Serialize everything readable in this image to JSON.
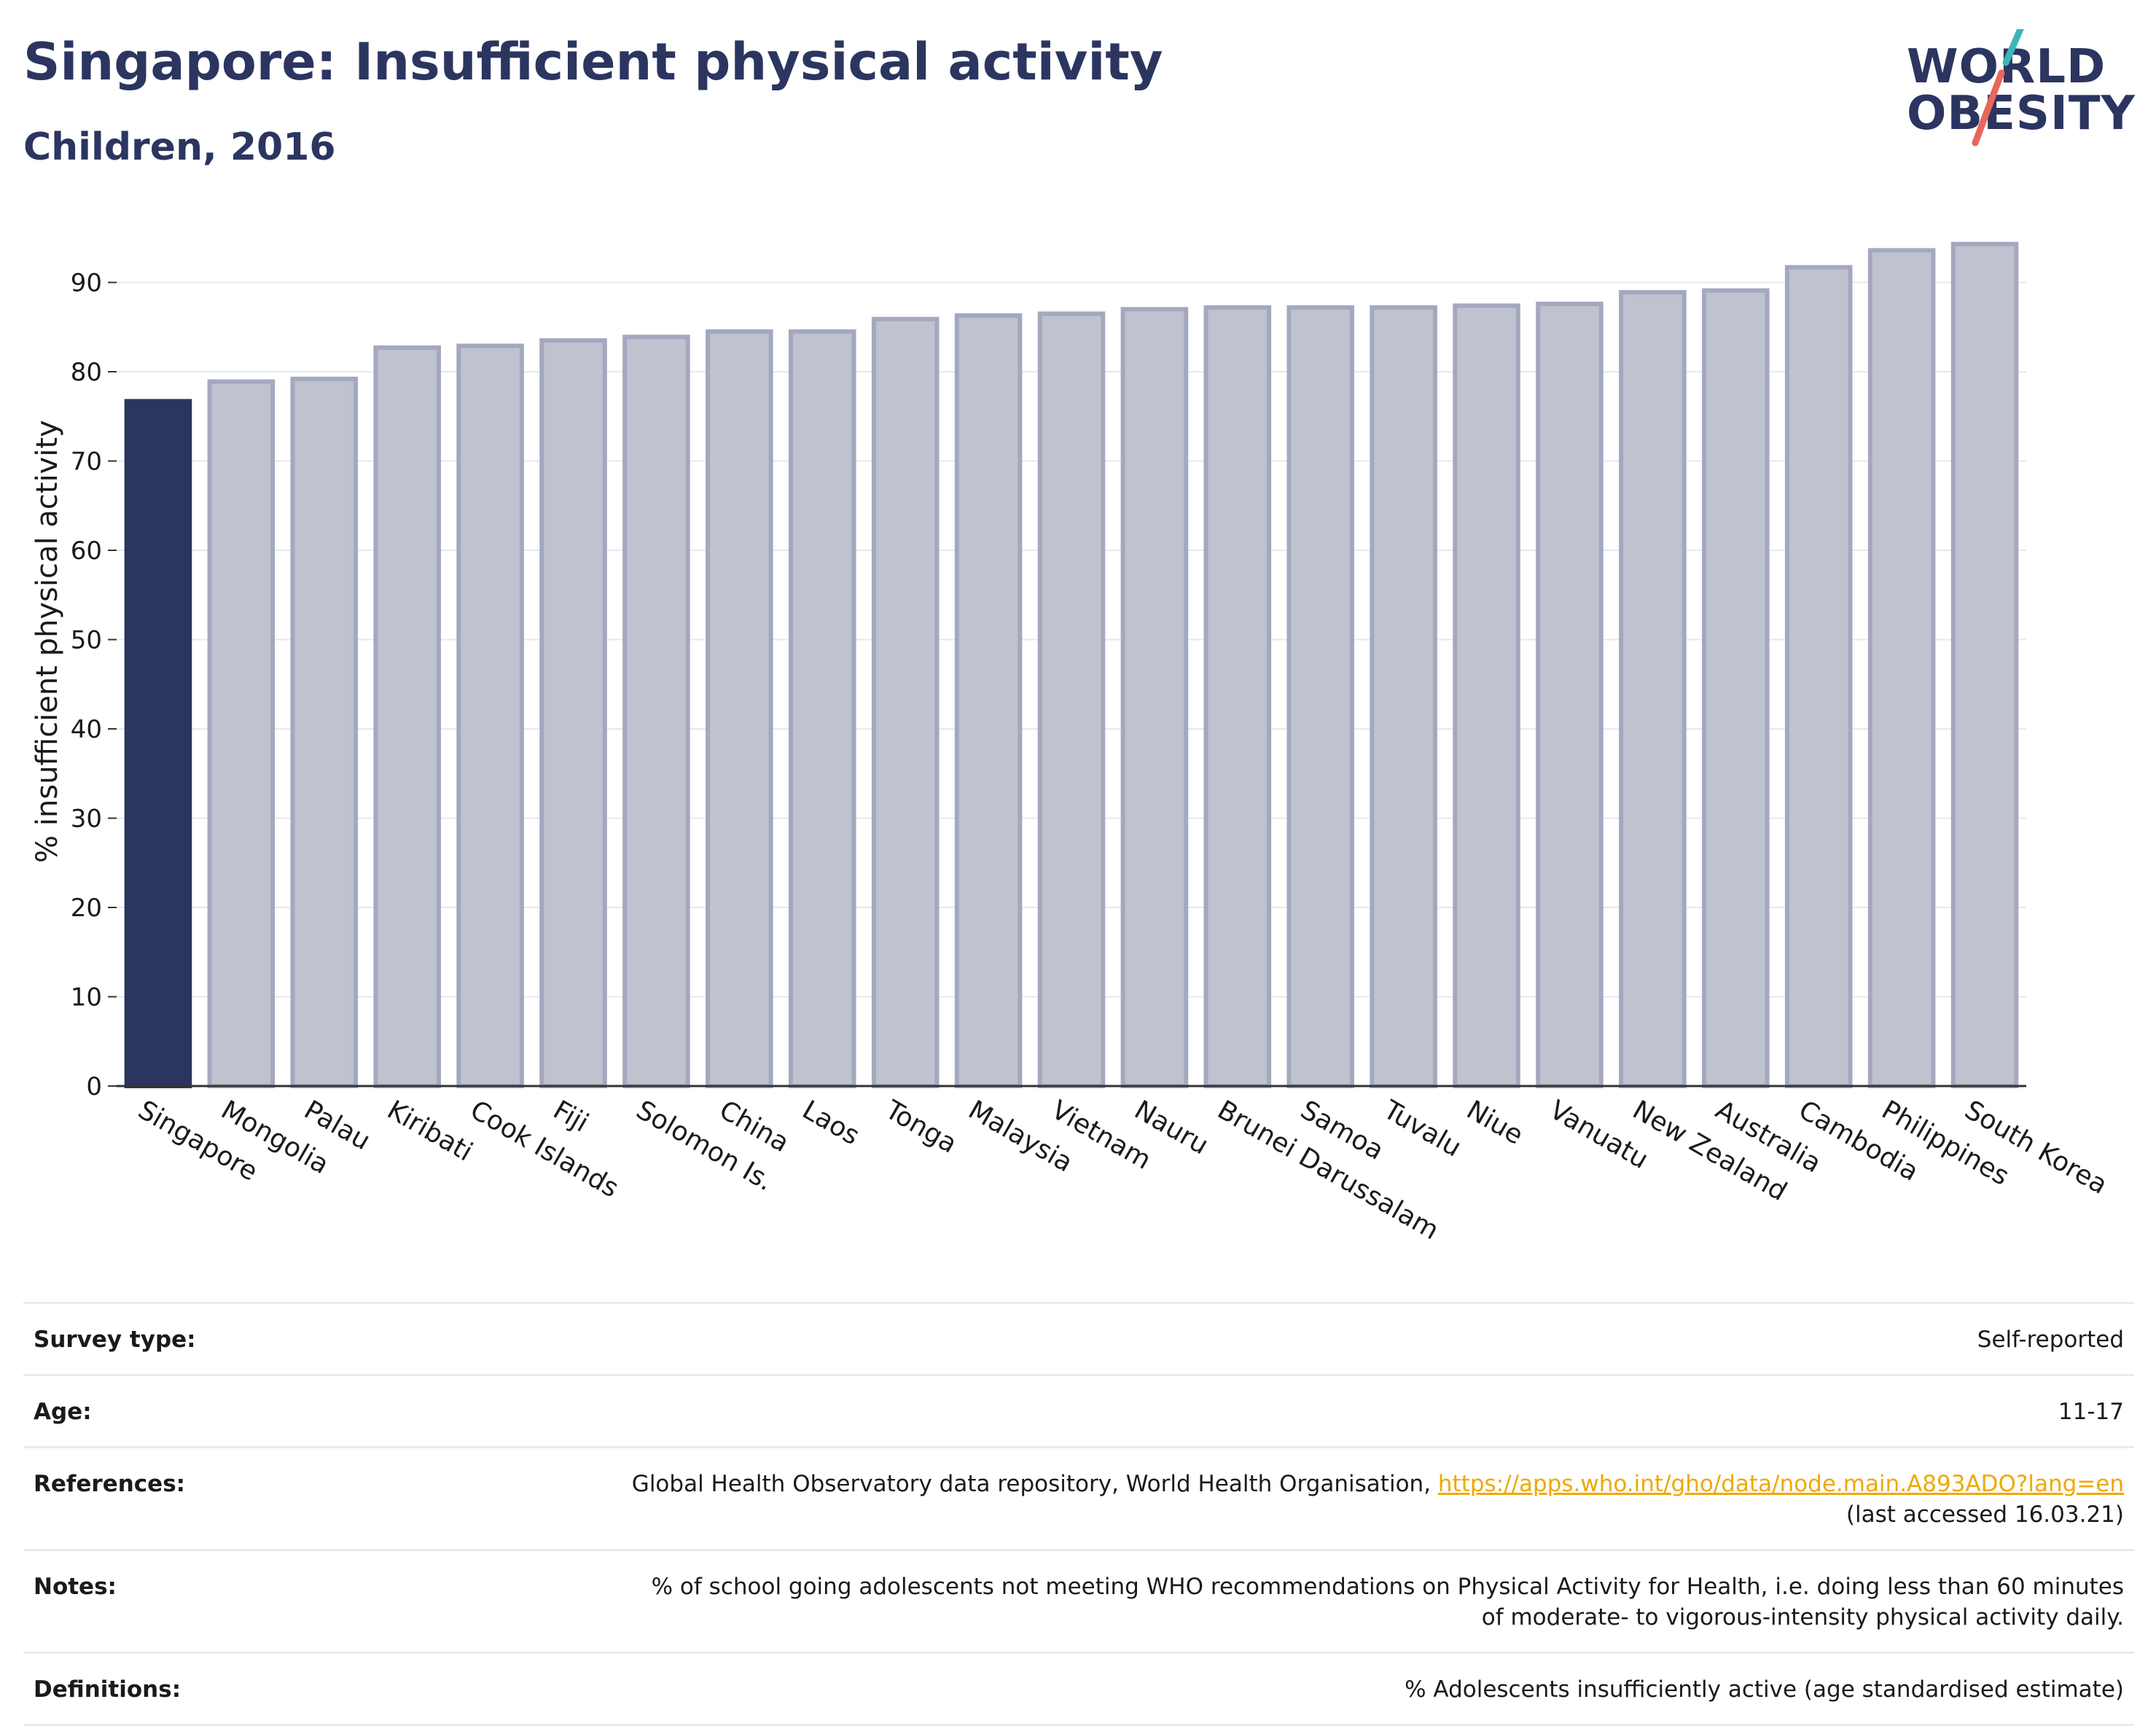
{
  "header": {
    "title": "Singapore: Insufficient physical activity",
    "subtitle": "Children, 2016"
  },
  "logo": {
    "line1": "WORLD",
    "line2": "OBESITY"
  },
  "chart_data": {
    "type": "bar",
    "ylabel": "% insufficient physical activity",
    "xlabel": "",
    "ylim": [
      0,
      97
    ],
    "yticks": [
      0,
      10,
      20,
      30,
      40,
      50,
      60,
      70,
      80,
      90
    ],
    "grid": true,
    "highlight": "Singapore",
    "highlight_color": "#2b3560",
    "bar_color": "#bfc2cf",
    "bar_edge_color": "#a4a8bf",
    "categories": [
      "Singapore",
      "Mongolia",
      "Palau",
      "Kiribati",
      "Cook Islands",
      "Fiji",
      "Solomon Is.",
      "China",
      "Laos",
      "Tonga",
      "Malaysia",
      "Vietnam",
      "Nauru",
      "Brunei Darussalam",
      "Samoa",
      "Tuvalu",
      "Niue",
      "Vanuatu",
      "New Zealand",
      "Australia",
      "Cambodia",
      "Philippines",
      "South Korea"
    ],
    "values": [
      76.7,
      78.9,
      79.2,
      82.7,
      82.9,
      83.5,
      83.9,
      84.5,
      84.5,
      85.9,
      86.3,
      86.5,
      87.0,
      87.2,
      87.2,
      87.2,
      87.4,
      87.6,
      88.9,
      89.1,
      91.7,
      93.6,
      94.3
    ]
  },
  "info": {
    "survey_type_label": "Survey type:",
    "survey_type_value": "Self-reported",
    "age_label": "Age:",
    "age_value": "11-17",
    "references_label": "References:",
    "references_text": "Global Health Observatory data repository, World Health Organisation, ",
    "references_link": "https://apps.who.int/gho/data/node.main.A893ADO?lang=en",
    "references_accessed": "(last accessed 16.03.21)",
    "notes_label": "Notes:",
    "notes_value": "% of school going adolescents not meeting WHO recommendations on Physical Activity for Health, i.e. doing less than 60 minutes of moderate- to vigorous-intensity physical activity daily.",
    "definitions_label": "Definitions:",
    "definitions_value": "% Adolescents insufficiently active (age standardised estimate)"
  }
}
